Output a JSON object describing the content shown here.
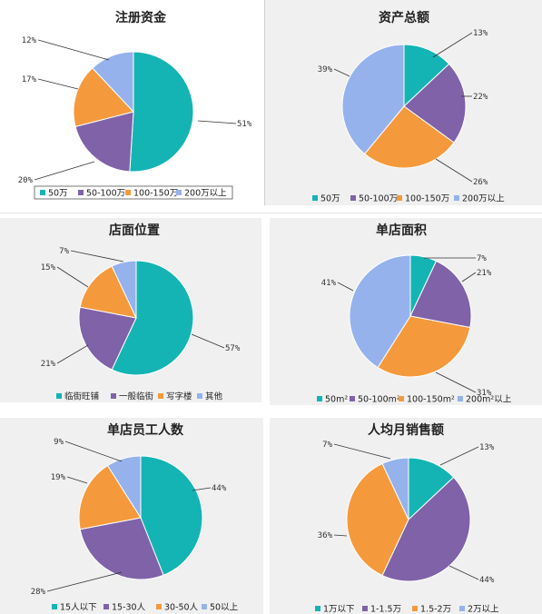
{
  "colors": {
    "teal": "#14b4b4",
    "purple": "#7f62a8",
    "orange": "#f49a3c",
    "lightblue": "#95b2ec"
  },
  "chart_data": [
    {
      "type": "pie",
      "title": "注册资金",
      "categories": [
        "50万",
        "50-100万",
        "100-150万",
        "200万以上"
      ],
      "values": [
        51,
        20,
        17,
        12
      ],
      "value_labels": [
        "51%",
        "20%",
        "17%",
        "12%"
      ],
      "legend": "bottom"
    },
    {
      "type": "pie",
      "title": "资产总额",
      "categories": [
        "50万",
        "50-100万",
        "100-150万",
        "200万以上"
      ],
      "values": [
        13,
        22,
        26,
        39
      ],
      "value_labels": [
        "13%",
        "22%",
        "26%",
        "39%"
      ],
      "legend": "bottom"
    },
    {
      "type": "pie",
      "title": "店面位置",
      "categories": [
        "临街旺铺",
        "一般临街",
        "写字楼",
        "其他"
      ],
      "values": [
        57,
        21,
        15,
        7
      ],
      "value_labels": [
        "57%",
        "21%",
        "15%",
        "7%"
      ],
      "legend": "bottom"
    },
    {
      "type": "pie",
      "title": "单店面积",
      "categories": [
        "50m²",
        "50-100m²",
        "100-150m²",
        "200m²以上"
      ],
      "values": [
        7,
        21,
        31,
        41
      ],
      "value_labels": [
        "7%",
        "21%",
        "31%",
        "41%"
      ],
      "legend": "bottom"
    },
    {
      "type": "pie",
      "title": "单店员工人数",
      "categories": [
        "15人以下",
        "15-30人",
        "30-50人",
        "50以上"
      ],
      "values": [
        44,
        28,
        19,
        9
      ],
      "value_labels": [
        "44%",
        "28%",
        "19%",
        "9%"
      ],
      "legend": "bottom"
    },
    {
      "type": "pie",
      "title": "人均月销售额",
      "categories": [
        "1万以下",
        "1-1.5万",
        "1.5-2万",
        "2万以上"
      ],
      "values": [
        13,
        44,
        36,
        7
      ],
      "value_labels": [
        "13%",
        "44%",
        "36%",
        "7%"
      ],
      "legend": "bottom"
    }
  ]
}
